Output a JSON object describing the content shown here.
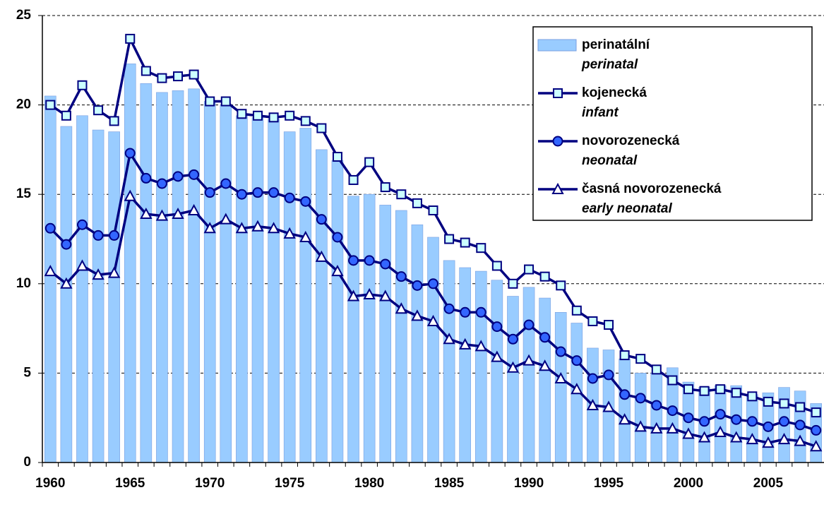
{
  "chart_data": {
    "type": "bar_line",
    "categories": [
      "1960",
      null,
      null,
      null,
      null,
      "1965",
      null,
      null,
      null,
      null,
      "1970",
      null,
      null,
      null,
      null,
      "1975",
      null,
      null,
      null,
      null,
      "1980",
      null,
      null,
      null,
      null,
      "1985",
      null,
      null,
      null,
      null,
      "1990",
      null,
      null,
      null,
      null,
      "1995",
      null,
      null,
      null,
      null,
      "2000",
      null,
      null,
      null,
      null,
      "2005",
      null,
      null,
      null
    ],
    "series": [
      {
        "name": "perinatální",
        "subname": "perinatal",
        "kind": "bar",
        "color": "#99ccff",
        "values": [
          20.5,
          18.8,
          19.4,
          18.6,
          18.5,
          22.3,
          21.2,
          20.7,
          20.8,
          20.9,
          20.2,
          20.0,
          19.4,
          19.3,
          19.2,
          18.5,
          18.7,
          17.5,
          16.9,
          14.9,
          15.0,
          14.4,
          14.1,
          13.3,
          12.6,
          11.3,
          10.9,
          10.7,
          10.2,
          9.3,
          9.8,
          9.2,
          8.4,
          7.8,
          6.4,
          6.3,
          5.8,
          5.0,
          5.0,
          5.3,
          4.5,
          4.2,
          4.3,
          4.3,
          3.8,
          3.9,
          4.2,
          4.0,
          3.3
        ]
      },
      {
        "name": "kojenecká",
        "subname": "infant",
        "kind": "line",
        "marker": "square",
        "color": "#000080",
        "marker_color": "#ccffff",
        "values": [
          20.0,
          19.4,
          21.1,
          19.7,
          19.1,
          23.7,
          21.9,
          21.5,
          21.6,
          21.7,
          20.2,
          20.2,
          19.5,
          19.4,
          19.3,
          19.4,
          19.1,
          18.7,
          17.1,
          15.8,
          16.8,
          15.4,
          15.0,
          14.5,
          14.1,
          12.5,
          12.3,
          12.0,
          11.0,
          10.0,
          10.8,
          10.4,
          9.9,
          8.5,
          7.9,
          7.7,
          6.0,
          5.8,
          5.2,
          4.6,
          4.1,
          4.0,
          4.1,
          3.9,
          3.7,
          3.4,
          3.3,
          3.1,
          2.8
        ]
      },
      {
        "name": "novorozenecká",
        "subname": "neonatal",
        "kind": "line",
        "marker": "circle",
        "color": "#000080",
        "marker_color": "#3366ff",
        "values": [
          13.1,
          12.2,
          13.3,
          12.7,
          12.7,
          17.3,
          15.9,
          15.6,
          16.0,
          16.1,
          15.1,
          15.6,
          15.0,
          15.1,
          15.1,
          14.8,
          14.6,
          13.6,
          12.6,
          11.3,
          11.3,
          11.1,
          10.4,
          9.9,
          10.0,
          8.6,
          8.4,
          8.4,
          7.6,
          6.9,
          7.7,
          7.0,
          6.2,
          5.7,
          4.7,
          4.9,
          3.8,
          3.6,
          3.2,
          2.9,
          2.5,
          2.3,
          2.7,
          2.4,
          2.3,
          2.0,
          2.3,
          2.1,
          1.8
        ]
      },
      {
        "name": "časná novorozenecká",
        "subname": "early neonatal",
        "kind": "line",
        "marker": "triangle",
        "color": "#000080",
        "marker_color": "#ffffff",
        "values": [
          10.7,
          10.0,
          11.0,
          10.5,
          10.6,
          14.9,
          13.9,
          13.8,
          13.9,
          14.1,
          13.1,
          13.6,
          13.1,
          13.2,
          13.1,
          12.8,
          12.6,
          11.5,
          10.7,
          9.3,
          9.4,
          9.3,
          8.6,
          8.2,
          7.9,
          6.9,
          6.6,
          6.5,
          5.9,
          5.3,
          5.7,
          5.4,
          4.7,
          4.1,
          3.2,
          3.1,
          2.4,
          2.0,
          1.9,
          1.9,
          1.6,
          1.4,
          1.7,
          1.4,
          1.3,
          1.1,
          1.3,
          1.2,
          0.9
        ]
      }
    ],
    "ylim": [
      0,
      25
    ],
    "yticks": [
      0,
      5,
      10,
      15,
      20,
      25
    ],
    "grid": true,
    "legend": "upper right"
  }
}
